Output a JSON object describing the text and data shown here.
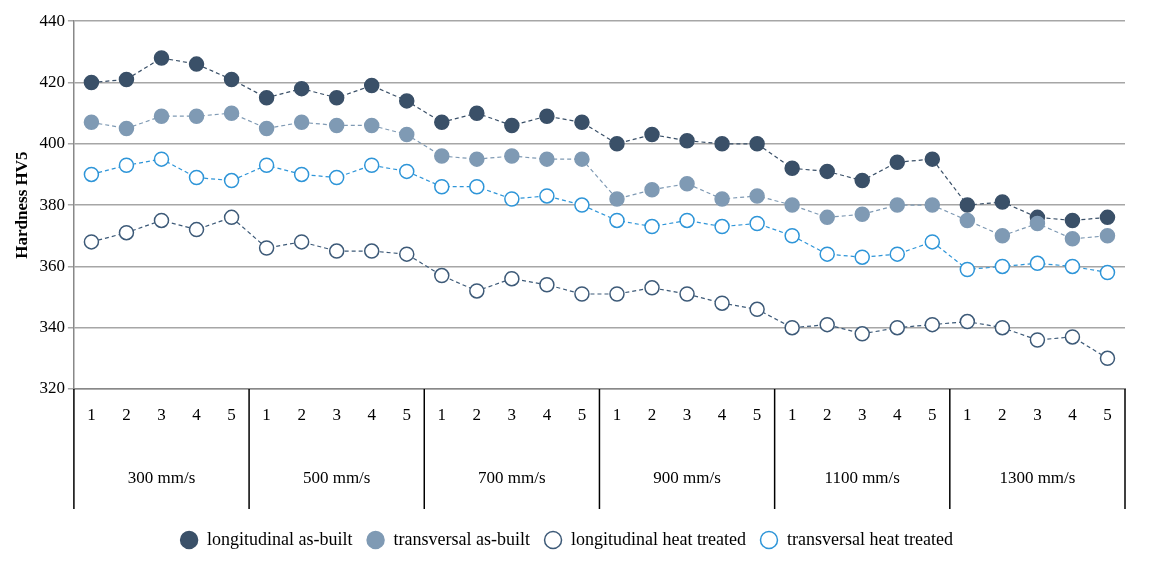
{
  "chart_data": {
    "type": "line",
    "ylabel": "Hardness HV5",
    "categories": [
      "1",
      "2",
      "3",
      "4",
      "5",
      "1",
      "2",
      "3",
      "4",
      "5",
      "1",
      "2",
      "3",
      "4",
      "5",
      "1",
      "2",
      "3",
      "4",
      "5",
      "1",
      "2",
      "3",
      "4",
      "5",
      "1",
      "2",
      "3",
      "4",
      "5"
    ],
    "annotations": [
      "300 mm/s",
      "500 mm/s",
      "700 mm/s",
      "900 mm/s",
      "1100 mm/s",
      "1300 mm/s"
    ],
    "series": [
      {
        "name": "longitudinal as-built",
        "color": "#3a5068",
        "values": [
          420,
          421,
          428,
          426,
          421,
          415,
          418,
          415,
          419,
          414,
          407,
          410,
          406,
          409,
          407,
          400,
          403,
          401,
          400,
          400,
          392,
          391,
          388,
          394,
          395,
          380,
          381,
          376,
          375,
          376
        ]
      },
      {
        "name": "transversal as-built",
        "color": "#7f9ab4",
        "values": [
          407,
          405,
          409,
          409,
          410,
          405,
          407,
          406,
          406,
          403,
          396,
          395,
          396,
          395,
          395,
          382,
          385,
          387,
          382,
          383,
          380,
          376,
          377,
          380,
          380,
          375,
          370,
          374,
          369,
          370
        ]
      },
      {
        "name": "longitudinal heat treated",
        "color": "#3d5a78",
        "values": [
          368,
          371,
          375,
          372,
          376,
          366,
          368,
          365,
          365,
          364,
          357,
          352,
          356,
          354,
          351,
          351,
          353,
          351,
          348,
          346,
          340,
          341,
          338,
          340,
          341,
          342,
          340,
          336,
          337,
          330
        ]
      },
      {
        "name": "transversal heat treated",
        "color": "#2e95d8",
        "values": [
          390,
          393,
          395,
          389,
          388,
          393,
          390,
          389,
          393,
          391,
          386,
          386,
          382,
          383,
          380,
          375,
          373,
          375,
          373,
          374,
          370,
          364,
          363,
          364,
          368,
          359,
          360,
          361,
          360,
          358
        ]
      }
    ],
    "ylim": [
      320,
      440
    ],
    "yticks": [
      320,
      340,
      360,
      380,
      400,
      420,
      440
    ],
    "grid": "y",
    "legend": "bottom",
    "marker": "circle",
    "line_style": "dashed"
  }
}
